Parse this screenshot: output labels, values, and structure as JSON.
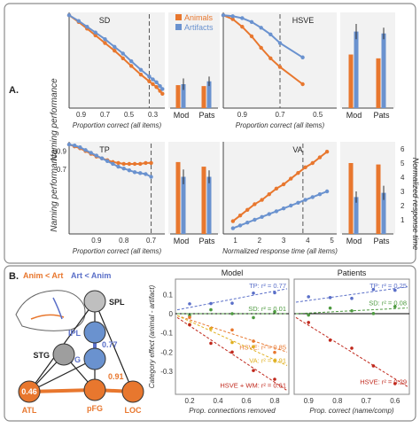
{
  "colors": {
    "animals": "#E8772E",
    "artifacts": "#6A92CF",
    "panel_bg": "#F2F2F2",
    "frame": "#8C8C8C",
    "model_bg": "#FFFFFF",
    "teal": "#2F7F8F"
  },
  "panel_a": {
    "label": "A.",
    "legend": [
      "Animals",
      "Artifacts"
    ],
    "y_label": "Naming performance",
    "bar_cats": [
      "Mod",
      "Pats"
    ],
    "right_axis_label": "Normalized response time",
    "right_ticks": [
      "1",
      "2",
      "3",
      "4",
      "5",
      "6"
    ]
  },
  "chart_data": [
    {
      "type": "line",
      "title": "SD",
      "xlabel": "Proportion correct (all items)",
      "x_ticks": [
        "0.9",
        "0.7",
        "0.5",
        "0.3"
      ],
      "xlim": [
        1.0,
        0.2
      ],
      "ylim": [
        0,
        1.0
      ],
      "cutoff": 0.33,
      "series": [
        {
          "name": "Animals",
          "x": [
            1.0,
            0.92,
            0.85,
            0.78,
            0.7,
            0.62,
            0.55,
            0.48,
            0.4,
            0.33,
            0.3,
            0.27,
            0.24,
            0.22
          ],
          "y": [
            0.97,
            0.9,
            0.83,
            0.76,
            0.68,
            0.6,
            0.52,
            0.44,
            0.35,
            0.28,
            0.25,
            0.22,
            0.18,
            0.15
          ]
        },
        {
          "name": "Artifacts",
          "x": [
            1.0,
            0.92,
            0.85,
            0.78,
            0.7,
            0.62,
            0.55,
            0.48,
            0.4,
            0.33,
            0.3,
            0.27,
            0.24,
            0.22
          ],
          "y": [
            0.97,
            0.91,
            0.85,
            0.79,
            0.72,
            0.64,
            0.57,
            0.49,
            0.4,
            0.33,
            0.3,
            0.27,
            0.23,
            0.2
          ]
        }
      ]
    },
    {
      "type": "bar",
      "categories": [
        "Mod",
        "Pats"
      ],
      "ylim": [
        0,
        1.0
      ],
      "series": [
        {
          "name": "Animals",
          "values": [
            0.24,
            0.23
          ]
        },
        {
          "name": "Artifacts",
          "values": [
            0.25,
            0.28
          ]
        }
      ],
      "errors": [
        [
          0,
          0.06
        ],
        [
          0,
          0.05
        ]
      ]
    },
    {
      "type": "line",
      "title": "HSVE",
      "xlabel": "Proportion correct (all items)",
      "x_ticks": [
        "0.9",
        "0.7",
        "0.5"
      ],
      "xlim": [
        1.0,
        0.4
      ],
      "ylim": [
        0,
        1.0
      ],
      "cutoff": 0.7,
      "series": [
        {
          "name": "Animals",
          "x": [
            1.0,
            0.95,
            0.9,
            0.85,
            0.8,
            0.75,
            0.7,
            0.58
          ],
          "y": [
            0.97,
            0.93,
            0.85,
            0.75,
            0.63,
            0.52,
            0.43,
            0.25
          ]
        },
        {
          "name": "Artifacts",
          "x": [
            1.0,
            0.95,
            0.9,
            0.85,
            0.8,
            0.75,
            0.7,
            0.58
          ],
          "y": [
            0.97,
            0.96,
            0.94,
            0.9,
            0.84,
            0.77,
            0.68,
            0.53
          ]
        }
      ]
    },
    {
      "type": "bar",
      "categories": [
        "Mod",
        "Pats"
      ],
      "ylim": [
        0,
        1.0
      ],
      "series": [
        {
          "name": "Animals",
          "values": [
            0.56,
            0.52
          ]
        },
        {
          "name": "Artifacts",
          "values": [
            0.8,
            0.78
          ]
        }
      ],
      "errors": [
        [
          0,
          0.08
        ],
        [
          0,
          0.06
        ]
      ]
    },
    {
      "type": "line",
      "title": "TP",
      "xlabel": "Proportion correct (all items)",
      "x_ticks": [
        "0.9",
        "0.8",
        "0.7"
      ],
      "xlim": [
        1.0,
        0.65
      ],
      "ylim": [
        0,
        1.0
      ],
      "y_ticks": [
        "0.9",
        "0.7"
      ],
      "cutoff": 0.7,
      "series": [
        {
          "name": "Animals",
          "x": [
            1.0,
            0.98,
            0.96,
            0.94,
            0.92,
            0.9,
            0.88,
            0.86,
            0.84,
            0.82,
            0.8,
            0.78,
            0.76,
            0.74,
            0.72,
            0.7
          ],
          "y": [
            0.97,
            0.95,
            0.93,
            0.9,
            0.87,
            0.84,
            0.82,
            0.8,
            0.78,
            0.77,
            0.76,
            0.76,
            0.76,
            0.76,
            0.77,
            0.77
          ]
        },
        {
          "name": "Artifacts",
          "x": [
            1.0,
            0.98,
            0.96,
            0.94,
            0.92,
            0.9,
            0.88,
            0.86,
            0.84,
            0.82,
            0.8,
            0.78,
            0.76,
            0.74,
            0.72,
            0.7
          ],
          "y": [
            0.97,
            0.96,
            0.94,
            0.91,
            0.88,
            0.85,
            0.82,
            0.79,
            0.76,
            0.73,
            0.71,
            0.69,
            0.67,
            0.66,
            0.65,
            0.62
          ]
        }
      ]
    },
    {
      "type": "bar",
      "categories": [
        "Mod",
        "Pats"
      ],
      "ylim": [
        0,
        1.0
      ],
      "series": [
        {
          "name": "Animals",
          "values": [
            0.78,
            0.73
          ]
        },
        {
          "name": "Artifacts",
          "values": [
            0.62,
            0.62
          ]
        }
      ],
      "errors": [
        [
          0,
          0.08
        ],
        [
          0,
          0.07
        ]
      ]
    },
    {
      "type": "line",
      "title": "VA",
      "xlabel": "Normalized response time (all items)",
      "x_ticks": [
        "1",
        "2",
        "3",
        "4",
        "5"
      ],
      "xlim": [
        0.5,
        5.2
      ],
      "ylim": [
        0,
        6.5
      ],
      "cutoff": 3.8,
      "series": [
        {
          "name": "Animals",
          "x": [
            0.9,
            1.2,
            1.5,
            1.8,
            2.1,
            2.4,
            2.7,
            3.0,
            3.3,
            3.6,
            3.9,
            4.2,
            4.5,
            4.8
          ],
          "y": [
            0.9,
            1.3,
            1.7,
            2.1,
            2.4,
            2.8,
            3.2,
            3.5,
            3.9,
            4.3,
            4.7,
            5.0,
            5.4,
            5.8
          ]
        },
        {
          "name": "Artifacts",
          "x": [
            0.9,
            1.2,
            1.5,
            1.8,
            2.1,
            2.4,
            2.7,
            3.0,
            3.3,
            3.6,
            3.9,
            4.2,
            4.5,
            4.8
          ],
          "y": [
            0.4,
            0.6,
            0.8,
            1.0,
            1.2,
            1.4,
            1.6,
            1.8,
            2.0,
            2.2,
            2.4,
            2.6,
            2.8,
            3.0
          ]
        }
      ]
    },
    {
      "type": "bar",
      "categories": [
        "Mod",
        "Pats"
      ],
      "ylim": [
        0,
        6.5
      ],
      "series": [
        {
          "name": "Animals",
          "values": [
            5.0,
            4.9
          ]
        },
        {
          "name": "Artifacts",
          "values": [
            2.6,
            2.9
          ]
        }
      ],
      "errors": [
        [
          0,
          0.4
        ],
        [
          0,
          0.5
        ]
      ]
    },
    {
      "type": "scatter",
      "title": "Model",
      "xlabel": "Prop. connections removed",
      "ylabel": "Category effect (animal - artifact)",
      "x_ticks": [
        "0.2",
        "0.4",
        "0.6",
        "0.8"
      ],
      "y_ticks": [
        "0.1",
        "0",
        "-0.1",
        "-0.2",
        "-0.3"
      ],
      "xlim": [
        0.1,
        0.9
      ],
      "ylim": [
        -0.42,
        0.18
      ],
      "fits": [
        {
          "label": "TP: r² = 0.77",
          "color": "#5A6FC8",
          "y0": 0.02,
          "y1": 0.13
        },
        {
          "label": "SD: r² = 0.01",
          "color": "#4D9A3F",
          "y0": 0.0,
          "y1": 0.0
        },
        {
          "label": "HSVE: r² = 0.85",
          "color": "#E8772E",
          "y0": -0.01,
          "y1": -0.2
        },
        {
          "label": "VA: r² = 0.91",
          "color": "#E0B020",
          "y0": -0.01,
          "y1": -0.27
        },
        {
          "label": "HSVE + WM: r² = 0.61",
          "color": "#C0281C",
          "y0": -0.02,
          "y1": -0.4
        }
      ]
    },
    {
      "type": "scatter",
      "title": "Patients",
      "xlabel": "Prop. correct (name/comp)",
      "x_ticks": [
        "0.9",
        "0.8",
        "0.7",
        "0.6"
      ],
      "xlim": [
        0.95,
        0.55
      ],
      "ylim": [
        -0.42,
        0.18
      ],
      "fits": [
        {
          "label": "TP: r² = 0.25",
          "color": "#5A6FC8",
          "y0": 0.06,
          "y1": 0.14
        },
        {
          "label": "SD: r² = 0.08",
          "color": "#4D9A3F",
          "y0": 0.0,
          "y1": 0.03
        },
        {
          "label": "HSVE: r² = 0.29",
          "color": "#C0281C",
          "y0": -0.02,
          "y1": -0.38
        }
      ]
    }
  ],
  "panel_b": {
    "label": "B.",
    "legend_anim": "Anim < Art",
    "legend_art": "Art < Anim",
    "nodes": [
      "SPL",
      "IPL",
      "MTG",
      "STG",
      "ATL",
      "pFG",
      "LOC"
    ],
    "weights": [
      "0.77",
      "0.46",
      "0.91"
    ]
  }
}
